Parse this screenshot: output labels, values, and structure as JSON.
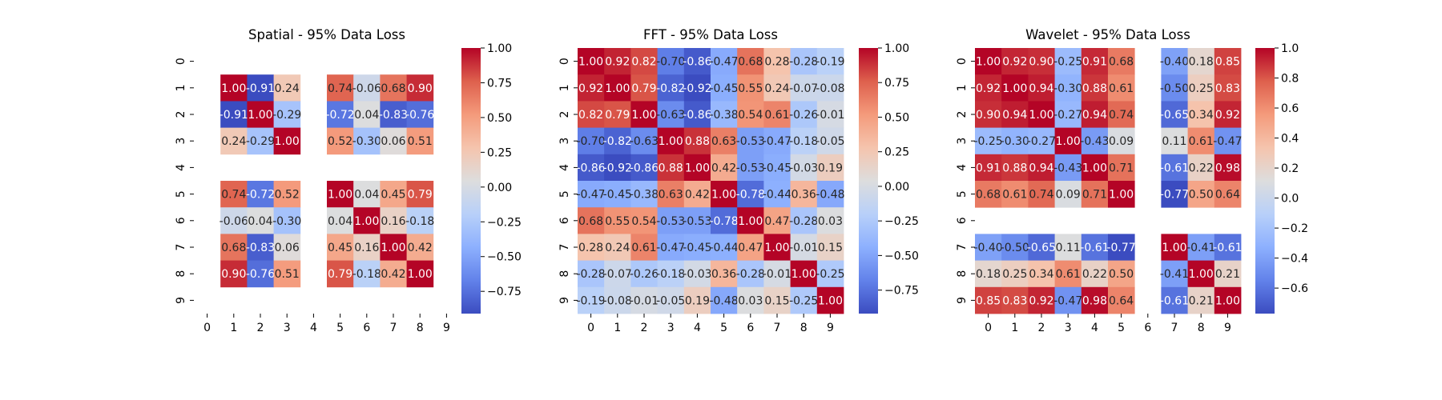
{
  "chart_data": [
    {
      "type": "heatmap",
      "title": "Spatial - 95% Data Loss",
      "xlabel": "",
      "ylabel": "",
      "x_ticks": [
        "0",
        "1",
        "2",
        "3",
        "4",
        "5",
        "6",
        "7",
        "8",
        "9"
      ],
      "y_ticks": [
        "0",
        "1",
        "2",
        "3",
        "4",
        "5",
        "6",
        "7",
        "8",
        "9"
      ],
      "vmin": -0.91,
      "vmax": 1.0,
      "colorbar_ticks": [
        -0.75,
        -0.5,
        -0.25,
        0.0,
        0.25,
        0.5,
        0.75,
        1.0
      ],
      "colorbar_tick_labels": [
        "−0.75",
        "−0.50",
        "−0.25",
        "0.00",
        "0.25",
        "0.50",
        "0.75",
        "1.00"
      ],
      "colormap": "coolwarm",
      "values": [
        [
          null,
          null,
          null,
          null,
          null,
          null,
          null,
          null,
          null,
          null
        ],
        [
          null,
          1.0,
          -0.91,
          0.24,
          null,
          0.74,
          -0.06,
          0.68,
          0.9,
          null
        ],
        [
          null,
          -0.91,
          1.0,
          -0.29,
          null,
          -0.72,
          0.04,
          -0.83,
          -0.76,
          null
        ],
        [
          null,
          0.24,
          -0.29,
          1.0,
          null,
          0.52,
          -0.3,
          0.06,
          0.51,
          null
        ],
        [
          null,
          null,
          null,
          null,
          null,
          null,
          null,
          null,
          null,
          null
        ],
        [
          null,
          0.74,
          -0.72,
          0.52,
          null,
          1.0,
          0.04,
          0.45,
          0.79,
          null
        ],
        [
          null,
          -0.06,
          0.04,
          -0.3,
          null,
          0.04,
          1.0,
          0.16,
          -0.18,
          null
        ],
        [
          null,
          0.68,
          -0.83,
          0.06,
          null,
          0.45,
          0.16,
          1.0,
          0.42,
          null
        ],
        [
          null,
          0.9,
          -0.76,
          0.51,
          null,
          0.79,
          -0.18,
          0.42,
          1.0,
          null
        ],
        [
          null,
          null,
          null,
          null,
          null,
          null,
          null,
          null,
          null,
          null
        ]
      ]
    },
    {
      "type": "heatmap",
      "title": "FFT - 95% Data Loss",
      "xlabel": "",
      "ylabel": "",
      "x_ticks": [
        "0",
        "1",
        "2",
        "3",
        "4",
        "5",
        "6",
        "7",
        "8",
        "9"
      ],
      "y_ticks": [
        "0",
        "1",
        "2",
        "3",
        "4",
        "5",
        "6",
        "7",
        "8",
        "9"
      ],
      "vmin": -0.92,
      "vmax": 1.0,
      "colorbar_ticks": [
        -0.75,
        -0.5,
        -0.25,
        0.0,
        0.25,
        0.5,
        0.75,
        1.0
      ],
      "colorbar_tick_labels": [
        "−0.75",
        "−0.50",
        "−0.25",
        "0.00",
        "0.25",
        "0.50",
        "0.75",
        "1.00"
      ],
      "colormap": "coolwarm",
      "values": [
        [
          1.0,
          0.92,
          0.82,
          -0.7,
          -0.86,
          -0.47,
          0.68,
          0.28,
          -0.28,
          -0.19
        ],
        [
          0.92,
          1.0,
          0.79,
          -0.82,
          -0.92,
          -0.45,
          0.55,
          0.24,
          -0.07,
          -0.08
        ],
        [
          0.82,
          0.79,
          1.0,
          -0.63,
          -0.86,
          -0.38,
          0.54,
          0.61,
          -0.26,
          -0.01
        ],
        [
          -0.7,
          -0.82,
          -0.63,
          1.0,
          0.88,
          0.63,
          -0.53,
          -0.47,
          -0.18,
          -0.05
        ],
        [
          -0.86,
          -0.92,
          -0.86,
          0.88,
          1.0,
          0.42,
          -0.53,
          -0.45,
          -0.03,
          0.19
        ],
        [
          -0.47,
          -0.45,
          -0.38,
          0.63,
          0.42,
          1.0,
          -0.78,
          -0.44,
          0.36,
          -0.48
        ],
        [
          0.68,
          0.55,
          0.54,
          -0.53,
          -0.53,
          -0.78,
          1.0,
          0.47,
          -0.28,
          0.03
        ],
        [
          0.28,
          0.24,
          0.61,
          -0.47,
          -0.45,
          -0.44,
          0.47,
          1.0,
          -0.01,
          0.15
        ],
        [
          -0.28,
          -0.07,
          -0.26,
          -0.18,
          -0.03,
          0.36,
          -0.28,
          -0.01,
          1.0,
          -0.25
        ],
        [
          -0.19,
          -0.08,
          -0.01,
          -0.05,
          0.19,
          -0.48,
          0.03,
          0.15,
          -0.25,
          1.0
        ]
      ]
    },
    {
      "type": "heatmap",
      "title": "Wavelet - 95% Data Loss",
      "xlabel": "",
      "ylabel": "",
      "x_ticks": [
        "0",
        "1",
        "2",
        "3",
        "4",
        "5",
        "6",
        "7",
        "8",
        "9"
      ],
      "y_ticks": [
        "0",
        "1",
        "2",
        "3",
        "4",
        "5",
        "6",
        "7",
        "8",
        "9"
      ],
      "vmin": -0.77,
      "vmax": 1.0,
      "colorbar_ticks": [
        -0.6,
        -0.4,
        -0.2,
        0.0,
        0.2,
        0.4,
        0.6,
        0.8,
        1.0
      ],
      "colorbar_tick_labels": [
        "−0.6",
        "−0.4",
        "−0.2",
        "0.0",
        "0.2",
        "0.4",
        "0.6",
        "0.8",
        "1.0"
      ],
      "colormap": "coolwarm",
      "values": [
        [
          1.0,
          0.92,
          0.9,
          -0.25,
          0.91,
          0.68,
          null,
          -0.4,
          0.18,
          0.85
        ],
        [
          0.92,
          1.0,
          0.94,
          -0.3,
          0.88,
          0.61,
          null,
          -0.5,
          0.25,
          0.83
        ],
        [
          0.9,
          0.94,
          1.0,
          -0.27,
          0.94,
          0.74,
          null,
          -0.65,
          0.34,
          0.92
        ],
        [
          -0.25,
          -0.3,
          -0.27,
          1.0,
          -0.43,
          0.09,
          null,
          0.11,
          0.61,
          -0.47
        ],
        [
          0.91,
          0.88,
          0.94,
          -0.43,
          1.0,
          0.71,
          null,
          -0.61,
          0.22,
          0.98
        ],
        [
          0.68,
          0.61,
          0.74,
          0.09,
          0.71,
          1.0,
          null,
          -0.77,
          0.5,
          0.64
        ],
        [
          null,
          null,
          null,
          null,
          null,
          null,
          null,
          null,
          null,
          null
        ],
        [
          -0.4,
          -0.5,
          -0.65,
          0.11,
          -0.61,
          -0.77,
          null,
          1.0,
          -0.41,
          -0.61
        ],
        [
          0.18,
          0.25,
          0.34,
          0.61,
          0.22,
          0.5,
          null,
          -0.41,
          1.0,
          0.21
        ],
        [
          0.85,
          0.83,
          0.92,
          -0.47,
          0.98,
          0.64,
          null,
          -0.61,
          0.21,
          1.0
        ]
      ]
    }
  ]
}
